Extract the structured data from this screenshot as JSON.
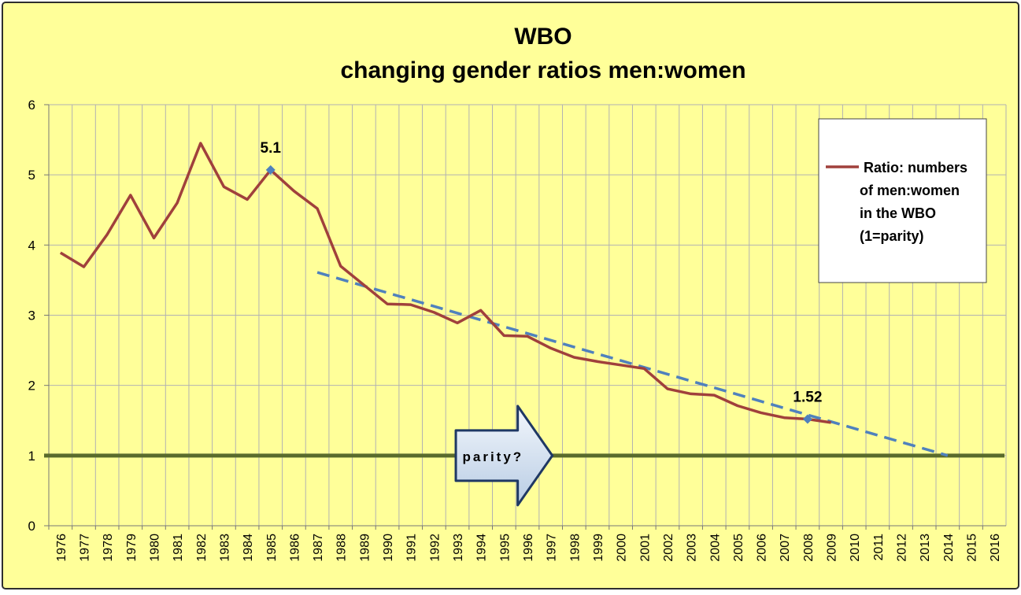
{
  "chart_data": {
    "type": "line",
    "title_line1": "WBO",
    "title_line2": "changing gender ratios men:women",
    "categories": [
      "1976",
      "1977",
      "1978",
      "1979",
      "1980",
      "1981",
      "1982",
      "1983",
      "1984",
      "1985",
      "1986",
      "1987",
      "1988",
      "1989",
      "1990",
      "1991",
      "1992",
      "1993",
      "1994",
      "1995",
      "1996",
      "1997",
      "1998",
      "1999",
      "2000",
      "2001",
      "2002",
      "2003",
      "2004",
      "2005",
      "2006",
      "2007",
      "2008",
      "2009",
      "2010",
      "2011",
      "2012",
      "2013",
      "2014",
      "2015",
      "2016"
    ],
    "ylim": [
      0,
      6
    ],
    "yticks": [
      "0",
      "1",
      "2",
      "3",
      "4",
      "5",
      "6"
    ],
    "grid": true,
    "series": [
      {
        "name": "Ratio: numbers of men:women in the WBO (1=parity)",
        "legend_lines": [
          "Ratio: numbers",
          "of men:women",
          "in the WBO",
          "(1=parity)"
        ],
        "color": "#a0403c",
        "values": [
          3.89,
          3.69,
          4.15,
          4.71,
          4.1,
          4.6,
          5.45,
          4.83,
          4.65,
          5.07,
          4.77,
          4.52,
          3.7,
          3.43,
          3.16,
          3.15,
          3.04,
          2.89,
          3.07,
          2.71,
          2.7,
          2.53,
          2.4,
          2.34,
          2.29,
          2.24,
          1.95,
          1.88,
          1.86,
          1.71,
          1.61,
          1.54,
          1.52,
          1.47,
          null,
          null,
          null,
          null,
          null,
          null,
          null
        ]
      }
    ],
    "trendline": {
      "color": "#4f81bd",
      "start": {
        "x": "1987",
        "y": 3.61
      },
      "end": {
        "x": "2014",
        "y": 1.0
      }
    },
    "parity_line": {
      "y": 1.0,
      "color": "#5a6b2c"
    },
    "highlights": [
      {
        "x": "1985",
        "y": 5.07,
        "label": "5.1"
      },
      {
        "x": "2008",
        "y": 1.52,
        "label": "1.52"
      }
    ],
    "annotation": {
      "text": "parity?",
      "x_start": "1993",
      "x_end": "1997",
      "y": 1.0
    },
    "colors": {
      "background": "#ffff99",
      "border": "#2f2f2f",
      "grid": "#b2b2b2",
      "arrow_fill": "#dbe5f1",
      "arrow_stroke": "#1f3864",
      "highlight_marker": "#4f81bd"
    }
  }
}
